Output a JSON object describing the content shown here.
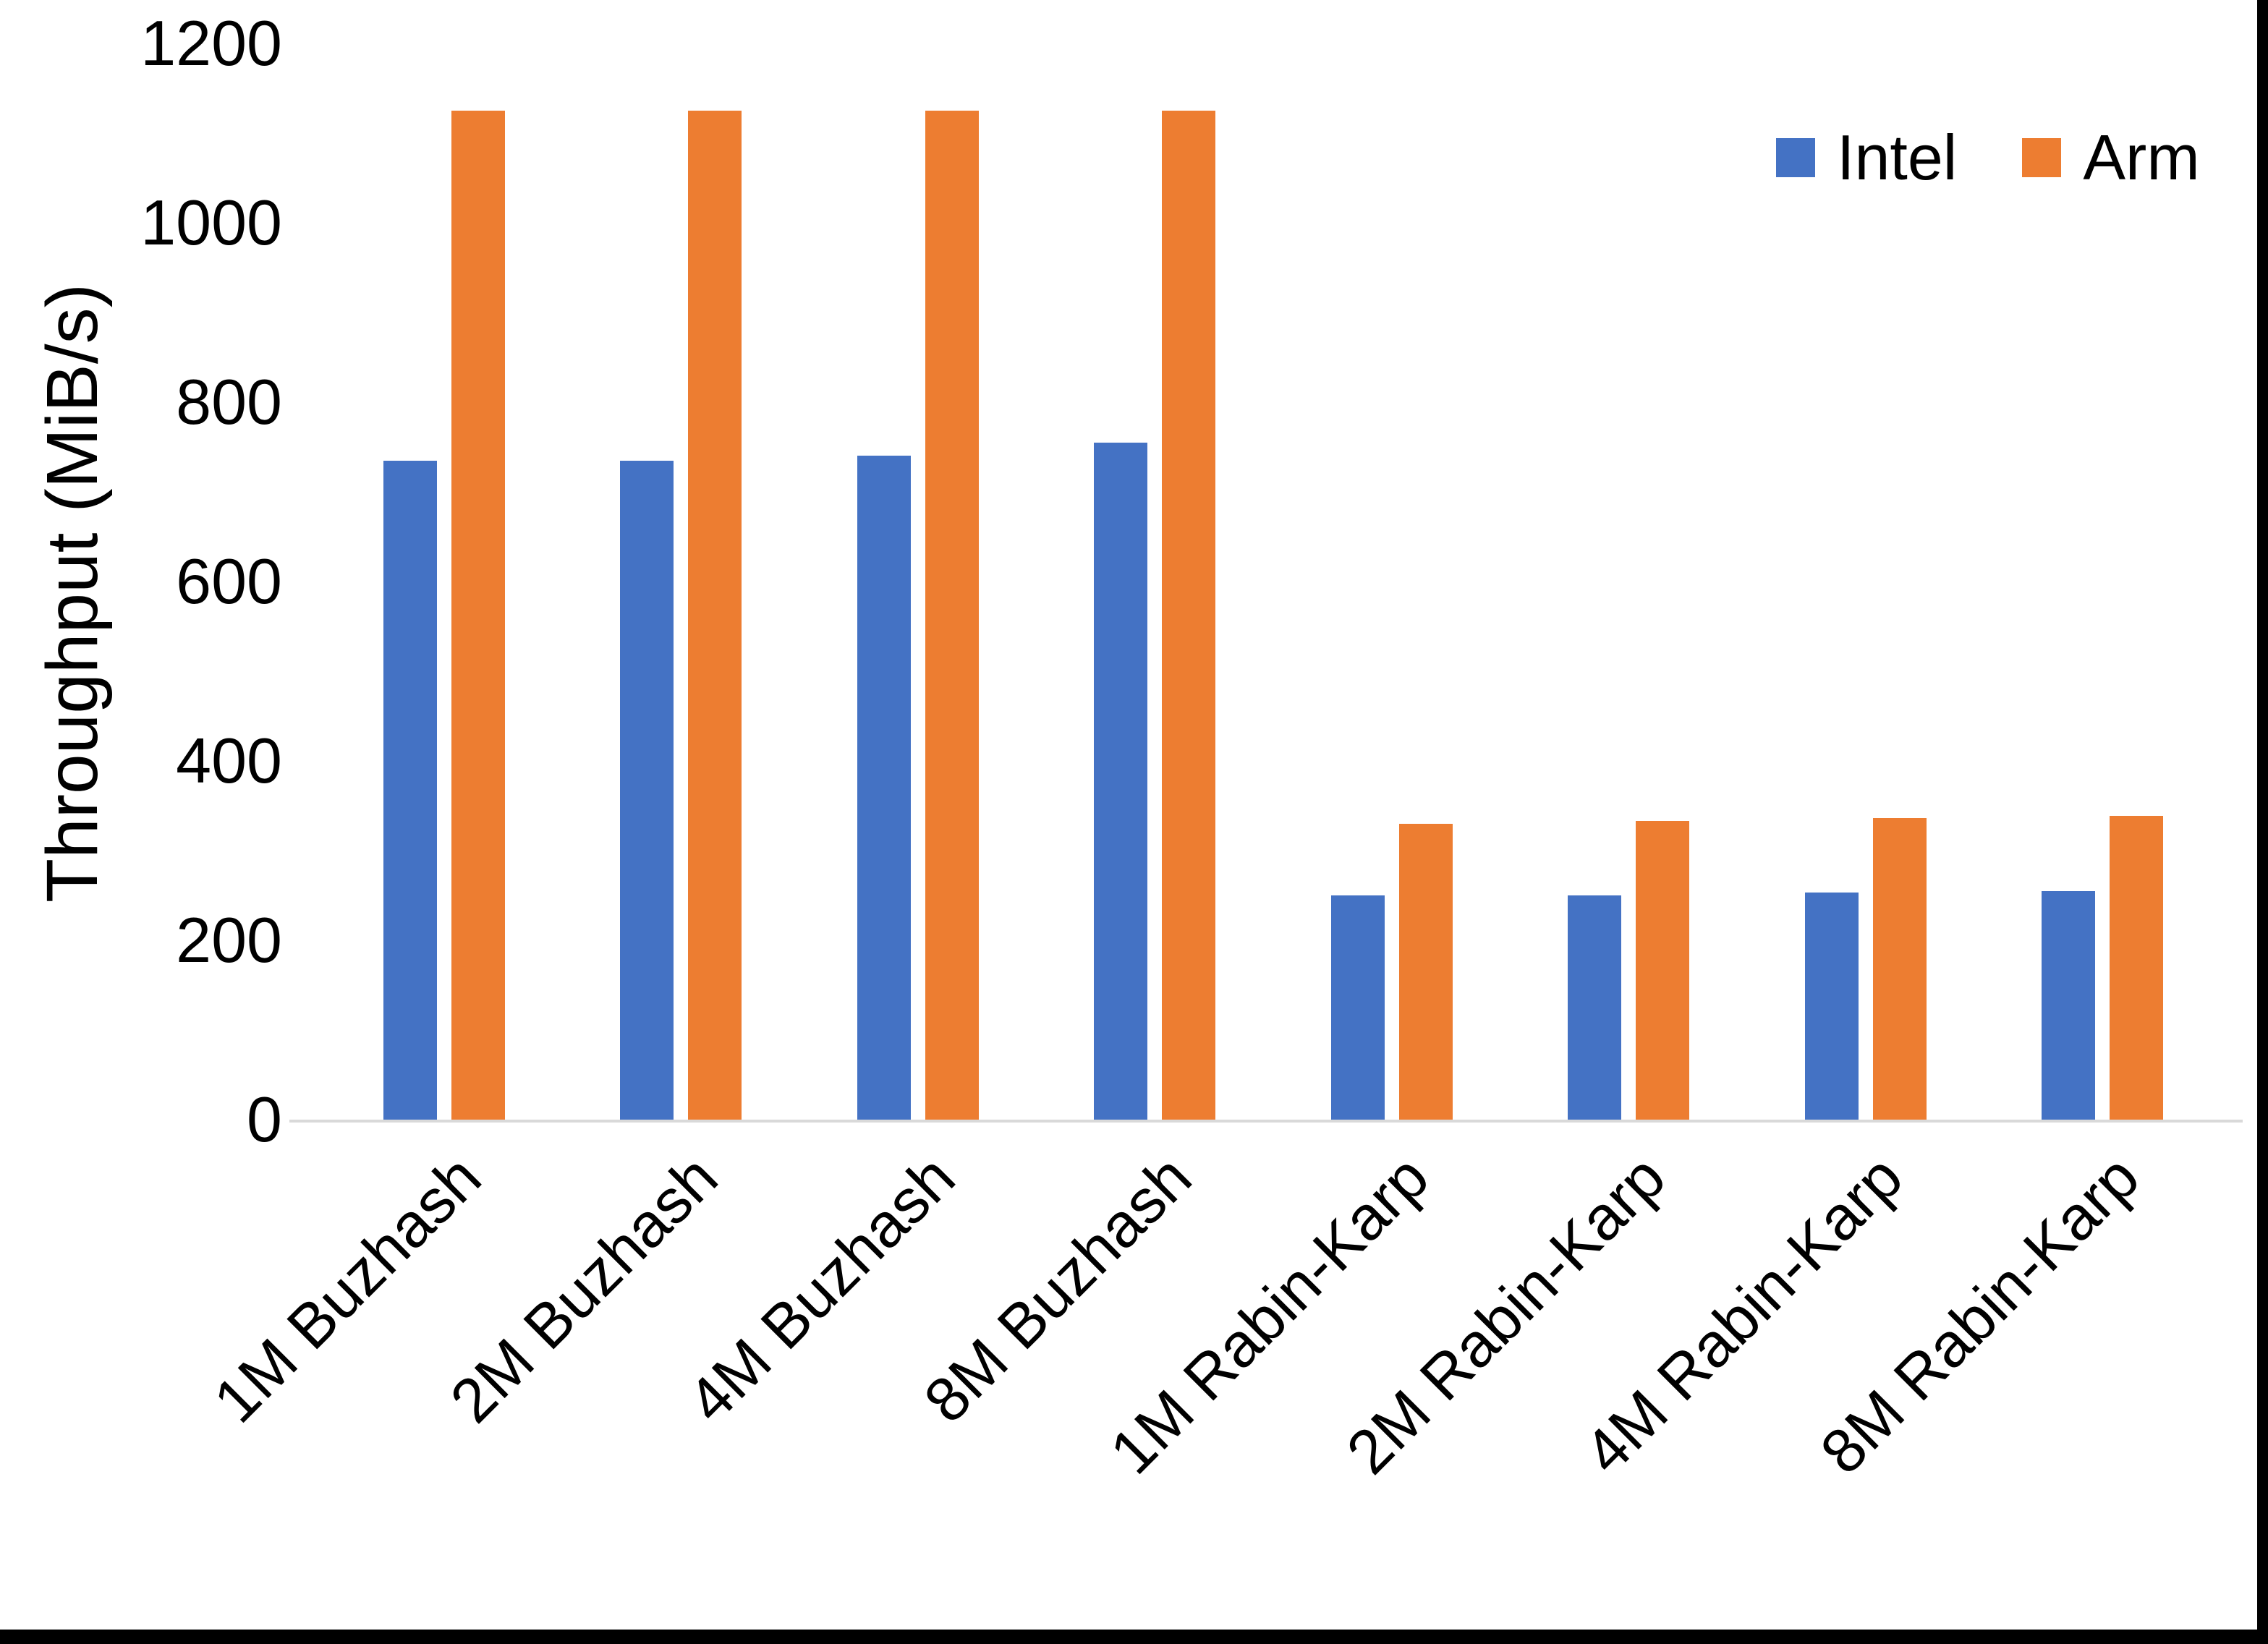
{
  "chart_data": {
    "type": "bar",
    "title": "",
    "xlabel": "",
    "ylabel": "Throughput (MiB/s)",
    "ylim": [
      0,
      1200
    ],
    "yticks": [
      0,
      200,
      400,
      600,
      800,
      1000,
      1200
    ],
    "grid": false,
    "legend_position": "top-right",
    "categories": [
      "1M Buzhash",
      "2M Buzhash",
      "4M Buzhash",
      "8M Buzhash",
      "1M Rabin-Karp",
      "2M Rabin-Karp",
      "4M Rabin-Karp",
      "8M Rabin-Karp"
    ],
    "series": [
      {
        "name": "Intel",
        "color": "#4472C4",
        "values": [
          735,
          735,
          740,
          755,
          250,
          250,
          253,
          255
        ]
      },
      {
        "name": "Arm",
        "color": "#ED7D31",
        "values": [
          1125,
          1125,
          1125,
          1125,
          330,
          333,
          336,
          339
        ]
      }
    ]
  },
  "colors": {
    "background": "#FFFFFF",
    "axis_line": "#D9D9D9",
    "text": "#000000",
    "frame": "#000000"
  }
}
